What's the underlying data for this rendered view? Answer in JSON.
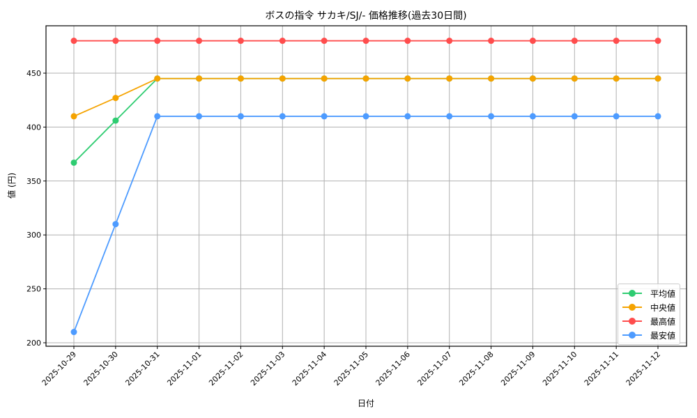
{
  "chart_data": {
    "type": "line",
    "title": "ボスの指令 サカキ/SJ/- 価格推移(過去30日間)",
    "xlabel": "日付",
    "ylabel": "値 (円)",
    "ylim": [
      195,
      490
    ],
    "yticks": [
      200,
      250,
      300,
      350,
      400,
      450
    ],
    "grid": true,
    "legend_position": "lower right",
    "categories": [
      "2025-10-29",
      "2025-10-30",
      "2025-10-31",
      "2025-11-01",
      "2025-11-02",
      "2025-11-03",
      "2025-11-04",
      "2025-11-05",
      "2025-11-06",
      "2025-11-07",
      "2025-11-08",
      "2025-11-09",
      "2025-11-10",
      "2025-11-11",
      "2025-11-12"
    ],
    "series": [
      {
        "name": "平均値",
        "color": "#2ecc71",
        "values": [
          367,
          406,
          445,
          445,
          445,
          445,
          445,
          445,
          445,
          445,
          445,
          445,
          445,
          445,
          445
        ]
      },
      {
        "name": "中央値",
        "color": "#f5a300",
        "values": [
          410,
          427,
          445,
          445,
          445,
          445,
          445,
          445,
          445,
          445,
          445,
          445,
          445,
          445,
          445
        ]
      },
      {
        "name": "最高値",
        "color": "#ff4d4d",
        "values": [
          480,
          480,
          480,
          480,
          480,
          480,
          480,
          480,
          480,
          480,
          480,
          480,
          480,
          480,
          480
        ]
      },
      {
        "name": "最安値",
        "color": "#4d9bff",
        "values": [
          210,
          310,
          410,
          410,
          410,
          410,
          410,
          410,
          410,
          410,
          410,
          410,
          410,
          410,
          410
        ]
      }
    ]
  }
}
